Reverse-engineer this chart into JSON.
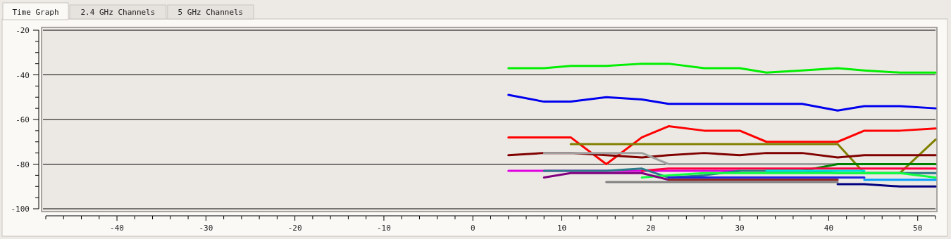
{
  "chart_data": {
    "type": "line",
    "annotations": [
      "Time Graph",
      "2.4 GHz Channels",
      "5 GHz Channels"
    ],
    "xlim": [
      -48,
      52
    ],
    "ylim": [
      -100,
      -20
    ],
    "xticks": [
      {
        "value": -48,
        "label": null
      },
      {
        "value": -46,
        "label": null
      },
      {
        "value": -44,
        "label": null
      },
      {
        "value": -42,
        "label": null
      },
      -40,
      {
        "value": -38,
        "label": null
      },
      {
        "value": -36,
        "label": null
      },
      {
        "value": -34,
        "label": null
      },
      {
        "value": -32,
        "label": null
      },
      -30,
      {
        "value": -28,
        "label": null
      },
      {
        "value": -26,
        "label": null
      },
      {
        "value": -24,
        "label": null
      },
      {
        "value": -22,
        "label": null
      },
      -20,
      {
        "value": -18,
        "label": null
      },
      {
        "value": -16,
        "label": null
      },
      {
        "value": -14,
        "label": null
      },
      {
        "value": -12,
        "label": null
      },
      -10,
      {
        "value": -8,
        "label": null
      },
      {
        "value": -6,
        "label": null
      },
      {
        "value": -4,
        "label": null
      },
      {
        "value": -2,
        "label": null
      },
      0,
      {
        "value": 2,
        "label": null
      },
      {
        "value": 4,
        "label": null
      },
      {
        "value": 6,
        "label": null
      },
      {
        "value": 8,
        "label": null
      },
      10,
      {
        "value": 12,
        "label": null
      },
      {
        "value": 14,
        "label": null
      },
      {
        "value": 16,
        "label": null
      },
      {
        "value": 18,
        "label": null
      },
      20,
      {
        "value": 22,
        "label": null
      },
      {
        "value": 24,
        "label": null
      },
      {
        "value": 26,
        "label": null
      },
      {
        "value": 28,
        "label": null
      },
      30,
      {
        "value": 32,
        "label": null
      },
      {
        "value": 34,
        "label": null
      },
      {
        "value": 36,
        "label": null
      },
      {
        "value": 38,
        "label": null
      },
      40,
      {
        "value": 42,
        "label": null
      },
      {
        "value": 44,
        "label": null
      },
      {
        "value": 46,
        "label": null
      },
      {
        "value": 48,
        "label": null
      },
      50,
      {
        "value": 52,
        "label": null
      }
    ],
    "yticks": [
      -100,
      {
        "value": -95,
        "label": null
      },
      {
        "value": -90,
        "label": null
      },
      {
        "value": -85,
        "label": null
      },
      -80,
      {
        "value": -75,
        "label": null
      },
      {
        "value": -70,
        "label": null
      },
      {
        "value": -65,
        "label": null
      },
      -60,
      {
        "value": -55,
        "label": null
      },
      {
        "value": -50,
        "label": null
      },
      {
        "value": -45,
        "label": null
      },
      -40,
      {
        "value": -35,
        "label": null
      },
      {
        "value": -30,
        "label": null
      },
      {
        "value": -25,
        "label": null
      },
      -20
    ],
    "grid": "y",
    "marker": "none",
    "line_style": "solid",
    "series": [
      {
        "color": "#00ee00",
        "x": [
          4,
          8,
          11,
          15,
          19,
          22,
          26,
          30,
          33,
          37,
          41,
          44,
          48,
          52
        ],
        "values": [
          -37,
          -37,
          -36,
          -36,
          -35,
          -35,
          -37,
          -37,
          -39,
          -38,
          -37,
          -38,
          -39,
          -39
        ]
      },
      {
        "color": "#0000ee",
        "x": [
          4,
          8,
          11,
          15,
          19,
          22,
          26,
          30,
          33,
          37,
          41,
          44,
          48,
          52
        ],
        "values": [
          -49,
          -52,
          -52,
          -50,
          -51,
          -53,
          -53,
          -53,
          -53,
          -53,
          -56,
          -54,
          -54,
          -55
        ]
      },
      {
        "color": "#ff0000",
        "x": [
          4,
          8,
          11,
          15,
          19,
          22,
          26,
          30,
          33,
          37,
          41,
          44,
          48,
          52
        ],
        "values": [
          -68,
          -68,
          -68,
          -80,
          -68,
          -63,
          -65,
          -65,
          -70,
          -70,
          -70,
          -65,
          -65,
          -64
        ]
      },
      {
        "color": "#808000",
        "x": [
          11,
          41,
          44,
          48,
          52
        ],
        "values": [
          -71,
          -71,
          -84,
          -84,
          -69
        ]
      },
      {
        "color": "#800000",
        "x": [
          4,
          8,
          11,
          15,
          19,
          22,
          26,
          30,
          33,
          37,
          41,
          44,
          48,
          52
        ],
        "values": [
          -76,
          -75,
          -75,
          -76,
          -77,
          -76,
          -75,
          -76,
          -75,
          -75,
          -77,
          -76,
          -76,
          -76
        ]
      },
      {
        "color": "#a0a0a0",
        "x": [
          8,
          11,
          15,
          19,
          22,
          41
        ],
        "values": [
          -75,
          -75,
          -75,
          -75,
          -80,
          -80
        ]
      },
      {
        "color": "#008000",
        "x": [
          33,
          37,
          41,
          44,
          48,
          52
        ],
        "values": [
          -83,
          -83,
          -80,
          -80,
          -80,
          -80
        ]
      },
      {
        "color": "#e000e0",
        "x": [
          4,
          8,
          30
        ],
        "values": [
          -83,
          -83,
          -83
        ]
      },
      {
        "color": "#ff0040",
        "x": [
          19,
          22,
          52
        ],
        "values": [
          -83,
          -82,
          -82
        ]
      },
      {
        "color": "#2a7a8a",
        "x": [
          8,
          15,
          19,
          22,
          26,
          30,
          37,
          41,
          52
        ],
        "values": [
          -83,
          -83,
          -82,
          -86,
          -85,
          -83,
          -83,
          -84,
          -84
        ]
      },
      {
        "color": "#00e0e0",
        "x": [
          33,
          44
        ],
        "values": [
          -83,
          -83
        ]
      },
      {
        "color": "#10ff40",
        "x": [
          19,
          22,
          26,
          48,
          52
        ],
        "values": [
          -86,
          -85,
          -84,
          -84,
          -86
        ]
      },
      {
        "color": "#800080",
        "x": [
          8,
          11,
          19,
          22
        ],
        "values": [
          -86,
          -84,
          -84,
          -87
        ]
      },
      {
        "color": "#2020e0",
        "x": [
          22,
          44
        ],
        "values": [
          -86,
          -86
        ]
      },
      {
        "color": "#00a0ff",
        "x": [
          44,
          52
        ],
        "values": [
          -87,
          -87
        ]
      },
      {
        "color": "#902020",
        "x": [
          22,
          41
        ],
        "values": [
          -87,
          -87
        ]
      },
      {
        "color": "#808080",
        "x": [
          15,
          41
        ],
        "values": [
          -88,
          -88
        ]
      },
      {
        "color": "#000080",
        "x": [
          41,
          44,
          48,
          52
        ],
        "values": [
          -89,
          -89,
          -90,
          -90
        ]
      }
    ]
  }
}
